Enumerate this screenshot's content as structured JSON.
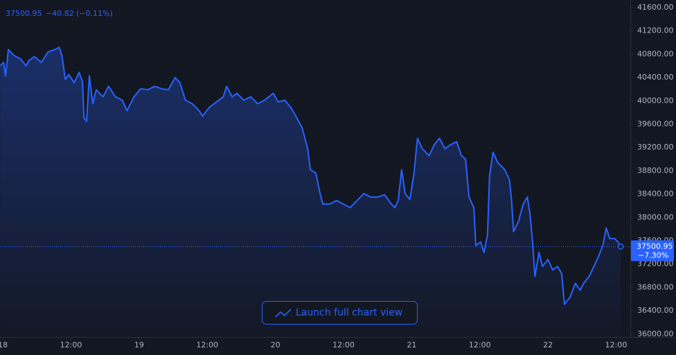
{
  "chart_data": {
    "type": "line",
    "change": "−40.82",
    "change_pct": "(−0.11%)",
    "tag_change": "−7.30%",
    "button": "Launch full chart view",
    "price_line": true,
    "grid": false,
    "xlim": [
      -0.5,
      110.5
    ],
    "ylim": [
      35950,
      41730
    ],
    "xticks": [
      {
        "value": 0,
        "label": "18"
      },
      {
        "value": 12,
        "label": "12:00"
      },
      {
        "value": 24,
        "label": "19"
      },
      {
        "value": 36,
        "label": "12:00"
      },
      {
        "value": 48,
        "label": "20"
      },
      {
        "value": 60,
        "label": "12:00"
      },
      {
        "value": 72,
        "label": "21"
      },
      {
        "value": 84,
        "label": "12:00"
      },
      {
        "value": 96,
        "label": "22"
      },
      {
        "value": 108,
        "label": "12:00"
      }
    ],
    "yticks": [
      {
        "value": 36000,
        "label": "36000.00"
      },
      {
        "value": 36400,
        "label": "36400.00"
      },
      {
        "value": 36800,
        "label": "36800.00"
      },
      {
        "value": 37200,
        "label": "37200.00"
      },
      {
        "value": 37600,
        "label": "37600.00"
      },
      {
        "value": 38000,
        "label": "38000.00"
      },
      {
        "value": 38400,
        "label": "38400.00"
      },
      {
        "value": 38800,
        "label": "38800.00"
      },
      {
        "value": 39200,
        "label": "39200.00"
      },
      {
        "value": 39600,
        "label": "39600.00"
      },
      {
        "value": 40000,
        "label": "40000.00"
      },
      {
        "value": 40400,
        "label": "40400.00"
      },
      {
        "value": 40800,
        "label": "40800.00"
      },
      {
        "value": 41200,
        "label": "41200.00"
      },
      {
        "value": 41600,
        "label": "41600.00"
      }
    ],
    "color": "#2962ff",
    "x": [
      -0.48,
      0.12,
      0.48,
      0.97,
      1.93,
      3.14,
      4.11,
      4.59,
      5.56,
      6.77,
      7.98,
      9.19,
      9.91,
      10.4,
      11.0,
      11.61,
      12.57,
      13.42,
      14.03,
      14.27,
      14.75,
      15.23,
      15.84,
      16.44,
      17.65,
      18.62,
      19.83,
      21.04,
      21.88,
      23.09,
      24.3,
      25.51,
      26.72,
      27.93,
      29.14,
      30.35,
      31.19,
      32.16,
      33.37,
      34.58,
      35.18,
      36.39,
      37.6,
      38.81,
      39.41,
      40.38,
      41.23,
      42.44,
      43.65,
      44.85,
      46.06,
      47.63,
      48.48,
      49.69,
      50.9,
      51.75,
      52.71,
      53.68,
      54.16,
      55.13,
      55.73,
      56.34,
      57.55,
      58.76,
      59.97,
      61.17,
      62.38,
      63.59,
      64.8,
      66.01,
      67.22,
      68.43,
      69.03,
      69.64,
      70.24,
      70.85,
      71.69,
      72.42,
      73.02,
      73.87,
      75.08,
      75.93,
      76.89,
      77.86,
      78.71,
      79.92,
      80.76,
      81.49,
      82.09,
      82.94,
      83.3,
      84.15,
      84.75,
      85.36,
      85.72,
      86.32,
      87.17,
      88.38,
      89.22,
      89.59,
      89.95,
      90.8,
      91.64,
      92.37,
      92.85,
      93.34,
      93.7,
      94.43,
      95.03,
      96.0,
      96.84,
      97.69,
      98.41,
      98.9,
      99.87,
      100.83,
      101.68,
      102.28,
      103.25,
      104.1,
      104.94,
      105.67,
      106.27,
      106.87,
      107.72,
      108.33,
      108.81
    ],
    "values": [
      40600,
      40660,
      40430,
      40880,
      40780,
      40720,
      40600,
      40690,
      40760,
      40660,
      40840,
      40880,
      40920,
      40780,
      40370,
      40450,
      40310,
      40490,
      40330,
      39710,
      39650,
      40430,
      39950,
      40190,
      40070,
      40250,
      40070,
      40010,
      39830,
      40070,
      40210,
      40190,
      40250,
      40210,
      40190,
      40400,
      40310,
      40010,
      39950,
      39830,
      39740,
      39890,
      39980,
      40070,
      40250,
      40070,
      40130,
      40010,
      40070,
      39950,
      40010,
      40130,
      39980,
      40010,
      39860,
      39710,
      39540,
      39180,
      38820,
      38760,
      38470,
      38230,
      38230,
      38290,
      38230,
      38170,
      38290,
      38410,
      38350,
      38350,
      38390,
      38230,
      38170,
      38290,
      38820,
      38410,
      38310,
      38760,
      39360,
      39180,
      39060,
      39240,
      39360,
      39180,
      39240,
      39300,
      39060,
      39000,
      38350,
      38170,
      37520,
      37580,
      37400,
      37700,
      38710,
      39120,
      38940,
      38820,
      38650,
      38290,
      37760,
      37930,
      38230,
      38350,
      38050,
      37520,
      36990,
      37400,
      37160,
      37280,
      37100,
      37160,
      37040,
      36510,
      36630,
      36870,
      36750,
      36870,
      36990,
      37160,
      37340,
      37520,
      37820,
      37640,
      37640,
      37580,
      37500.95
    ]
  }
}
